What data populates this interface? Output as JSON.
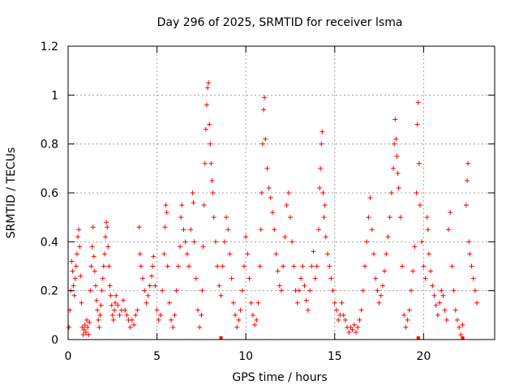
{
  "chart_data": {
    "type": "scatter",
    "title": "Day 296 of 2025, SRMTID for receiver lsma",
    "xlabel": "GPS time / hours",
    "ylabel": "SRMTID / TECUs",
    "xlim": [
      0,
      24
    ],
    "ylim": [
      0,
      1.2
    ],
    "xticks": [
      0,
      5,
      10,
      15,
      20
    ],
    "yticks": [
      0,
      0.2,
      0.4,
      0.6,
      0.8,
      1,
      1.2
    ],
    "xtick_labels": [
      "0",
      "5",
      "10",
      "15",
      "20"
    ],
    "ytick_labels": [
      "0",
      "0.2",
      "0.4",
      "0.6",
      "0.8",
      "1",
      "1.2"
    ],
    "grid": true,
    "marker": "+",
    "color": "#ff0000",
    "series": [
      {
        "name": "SRMTID",
        "points": [
          [
            0.05,
            0.05
          ],
          [
            0.1,
            0.12
          ],
          [
            0.15,
            0.2
          ],
          [
            0.2,
            0.32
          ],
          [
            0.25,
            0.28
          ],
          [
            0.3,
            0.22
          ],
          [
            0.35,
            0.18
          ],
          [
            0.4,
            0.25
          ],
          [
            0.45,
            0.3
          ],
          [
            0.5,
            0.35
          ],
          [
            0.55,
            0.42
          ],
          [
            0.6,
            0.45
          ],
          [
            0.65,
            0.38
          ],
          [
            0.7,
            0.26
          ],
          [
            0.75,
            0.15
          ],
          [
            0.8,
            0.05
          ],
          [
            0.85,
            0.02
          ],
          [
            0.9,
            0.04
          ],
          [
            0.95,
            0.06
          ],
          [
            1.0,
            0.03
          ],
          [
            1.05,
            0.08
          ],
          [
            1.1,
            0.05
          ],
          [
            1.15,
            0.02
          ],
          [
            1.2,
            0.07
          ],
          [
            1.25,
            0.2
          ],
          [
            1.3,
            0.3
          ],
          [
            1.35,
            0.38
          ],
          [
            1.4,
            0.46
          ],
          [
            1.45,
            0.34
          ],
          [
            1.5,
            0.28
          ],
          [
            1.55,
            0.22
          ],
          [
            1.6,
            0.16
          ],
          [
            1.65,
            0.12
          ],
          [
            1.7,
            0.08
          ],
          [
            1.75,
            0.05
          ],
          [
            1.8,
            0.1
          ],
          [
            1.85,
            0.14
          ],
          [
            1.9,
            0.2
          ],
          [
            1.95,
            0.25
          ],
          [
            2.0,
            0.3
          ],
          [
            2.05,
            0.35
          ],
          [
            2.1,
            0.42
          ],
          [
            2.15,
            0.48
          ],
          [
            2.2,
            0.46
          ],
          [
            2.25,
            0.38
          ],
          [
            2.3,
            0.3
          ],
          [
            2.35,
            0.22
          ],
          [
            2.4,
            0.18
          ],
          [
            2.45,
            0.14
          ],
          [
            2.5,
            0.1
          ],
          [
            2.55,
            0.08
          ],
          [
            2.6,
            0.12
          ],
          [
            2.65,
            0.15
          ],
          [
            2.7,
            0.18
          ],
          [
            2.8,
            0.14
          ],
          [
            2.9,
            0.1
          ],
          [
            3.0,
            0.12
          ],
          [
            3.1,
            0.16
          ],
          [
            3.2,
            0.12
          ],
          [
            3.3,
            0.1
          ],
          [
            3.4,
            0.08
          ],
          [
            3.5,
            0.05
          ],
          [
            3.6,
            0.08
          ],
          [
            3.7,
            0.06
          ],
          [
            3.8,
            0.1
          ],
          [
            3.9,
            0.12
          ],
          [
            4.0,
            0.46
          ],
          [
            4.05,
            0.35
          ],
          [
            4.1,
            0.3
          ],
          [
            4.2,
            0.25
          ],
          [
            4.3,
            0.2
          ],
          [
            4.4,
            0.15
          ],
          [
            4.5,
            0.18
          ],
          [
            4.6,
            0.22
          ],
          [
            4.7,
            0.26
          ],
          [
            4.75,
            0.3
          ],
          [
            4.8,
            0.34
          ],
          [
            4.9,
            0.22
          ],
          [
            5.0,
            0.12
          ],
          [
            5.1,
            0.08
          ],
          [
            5.2,
            0.1
          ],
          [
            5.3,
            0.2
          ],
          [
            5.4,
            0.35
          ],
          [
            5.45,
            0.46
          ],
          [
            5.5,
            0.55
          ],
          [
            5.55,
            0.52
          ],
          [
            5.6,
            0.3
          ],
          [
            5.7,
            0.15
          ],
          [
            5.8,
            0.08
          ],
          [
            5.9,
            0.05
          ],
          [
            6.0,
            0.1
          ],
          [
            6.1,
            0.2
          ],
          [
            6.2,
            0.3
          ],
          [
            6.3,
            0.38
          ],
          [
            6.35,
            0.5
          ],
          [
            6.4,
            0.55
          ],
          [
            6.5,
            0.45
          ],
          [
            6.6,
            0.4
          ],
          [
            6.7,
            0.35
          ],
          [
            6.8,
            0.3
          ],
          [
            6.9,
            0.45
          ],
          [
            7.0,
            0.6
          ],
          [
            7.05,
            0.56
          ],
          [
            7.1,
            0.4
          ],
          [
            7.2,
            0.25
          ],
          [
            7.3,
            0.12
          ],
          [
            7.4,
            0.05
          ],
          [
            7.5,
            0.1
          ],
          [
            7.55,
            0.2
          ],
          [
            7.6,
            0.38
          ],
          [
            7.65,
            0.55
          ],
          [
            7.7,
            0.72
          ],
          [
            7.75,
            0.86
          ],
          [
            7.8,
            0.96
          ],
          [
            7.85,
            1.03
          ],
          [
            7.9,
            1.05
          ],
          [
            7.95,
            0.88
          ],
          [
            8.0,
            0.8
          ],
          [
            8.05,
            0.72
          ],
          [
            8.1,
            0.65
          ],
          [
            8.15,
            0.6
          ],
          [
            8.2,
            0.5
          ],
          [
            8.3,
            0.4
          ],
          [
            8.4,
            0.3
          ],
          [
            8.5,
            0.22
          ],
          [
            8.6,
            0.18
          ],
          [
            8.7,
            0.3
          ],
          [
            8.8,
            0.4
          ],
          [
            8.9,
            0.5
          ],
          [
            9.0,
            0.45
          ],
          [
            9.1,
            0.35
          ],
          [
            9.2,
            0.25
          ],
          [
            9.3,
            0.15
          ],
          [
            9.4,
            0.1
          ],
          [
            9.5,
            0.05
          ],
          [
            9.6,
            0.08
          ],
          [
            9.7,
            0.12
          ],
          [
            9.8,
            0.2
          ],
          [
            9.9,
            0.3
          ],
          [
            10.0,
            0.42
          ],
          [
            10.1,
            0.35
          ],
          [
            10.2,
            0.25
          ],
          [
            10.3,
            0.15
          ],
          [
            10.4,
            0.1
          ],
          [
            10.5,
            0.06
          ],
          [
            10.6,
            0.08
          ],
          [
            10.7,
            0.15
          ],
          [
            10.8,
            0.3
          ],
          [
            10.85,
            0.45
          ],
          [
            10.9,
            0.6
          ],
          [
            10.95,
            0.8
          ],
          [
            11.0,
            0.94
          ],
          [
            11.05,
            0.99
          ],
          [
            11.1,
            0.82
          ],
          [
            11.2,
            0.7
          ],
          [
            11.3,
            0.62
          ],
          [
            11.4,
            0.58
          ],
          [
            11.5,
            0.52
          ],
          [
            11.6,
            0.45
          ],
          [
            11.7,
            0.35
          ],
          [
            11.8,
            0.28
          ],
          [
            11.9,
            0.22
          ],
          [
            12.0,
            0.2
          ],
          [
            12.1,
            0.3
          ],
          [
            12.2,
            0.42
          ],
          [
            12.3,
            0.55
          ],
          [
            12.4,
            0.6
          ],
          [
            12.5,
            0.5
          ],
          [
            12.6,
            0.4
          ],
          [
            12.7,
            0.3
          ],
          [
            12.8,
            0.2
          ],
          [
            12.9,
            0.15
          ],
          [
            13.0,
            0.2
          ],
          [
            13.1,
            0.25
          ],
          [
            13.2,
            0.3
          ],
          [
            13.3,
            0.22
          ],
          [
            13.4,
            0.16
          ],
          [
            13.5,
            0.12
          ],
          [
            13.6,
            0.2
          ],
          [
            13.7,
            0.3
          ],
          [
            13.8,
            0.36
          ],
          [
            13.9,
            0.25
          ],
          [
            14.0,
            0.3
          ],
          [
            14.1,
            0.45
          ],
          [
            14.15,
            0.62
          ],
          [
            14.2,
            0.7
          ],
          [
            14.25,
            0.8
          ],
          [
            14.3,
            0.85
          ],
          [
            14.35,
            0.6
          ],
          [
            14.4,
            0.5
          ],
          [
            14.45,
            0.55
          ],
          [
            14.5,
            0.42
          ],
          [
            14.6,
            0.35
          ],
          [
            14.7,
            0.3
          ],
          [
            14.8,
            0.25
          ],
          [
            14.9,
            0.2
          ],
          [
            15.0,
            0.15
          ],
          [
            15.1,
            0.12
          ],
          [
            15.2,
            0.08
          ],
          [
            15.3,
            0.1
          ],
          [
            15.4,
            0.15
          ],
          [
            15.5,
            0.1
          ],
          [
            15.6,
            0.08
          ],
          [
            15.7,
            0.05
          ],
          [
            15.8,
            0.03
          ],
          [
            15.9,
            0.05
          ],
          [
            16.0,
            0.04
          ],
          [
            16.1,
            0.06
          ],
          [
            16.2,
            0.03
          ],
          [
            16.3,
            0.05
          ],
          [
            16.4,
            0.08
          ],
          [
            16.5,
            0.12
          ],
          [
            16.6,
            0.2
          ],
          [
            16.7,
            0.3
          ],
          [
            16.8,
            0.4
          ],
          [
            16.9,
            0.5
          ],
          [
            17.0,
            0.58
          ],
          [
            17.1,
            0.45
          ],
          [
            17.2,
            0.35
          ],
          [
            17.3,
            0.25
          ],
          [
            17.4,
            0.2
          ],
          [
            17.5,
            0.15
          ],
          [
            17.6,
            0.18
          ],
          [
            17.7,
            0.22
          ],
          [
            17.8,
            0.28
          ],
          [
            17.9,
            0.35
          ],
          [
            18.0,
            0.42
          ],
          [
            18.1,
            0.5
          ],
          [
            18.2,
            0.6
          ],
          [
            18.3,
            0.7
          ],
          [
            18.35,
            0.8
          ],
          [
            18.4,
            0.9
          ],
          [
            18.45,
            0.82
          ],
          [
            18.5,
            0.75
          ],
          [
            18.55,
            0.68
          ],
          [
            18.6,
            0.62
          ],
          [
            18.7,
            0.5
          ],
          [
            18.8,
            0.3
          ],
          [
            18.9,
            0.1
          ],
          [
            19.0,
            0.05
          ],
          [
            19.1,
            0.08
          ],
          [
            19.2,
            0.12
          ],
          [
            19.3,
            0.2
          ],
          [
            19.4,
            0.28
          ],
          [
            19.5,
            0.38
          ],
          [
            19.6,
            0.6
          ],
          [
            19.65,
            0.88
          ],
          [
            19.7,
            0.97
          ],
          [
            19.75,
            0.72
          ],
          [
            19.8,
            0.55
          ],
          [
            19.9,
            0.4
          ],
          [
            20.0,
            0.3
          ],
          [
            20.1,
            0.25
          ],
          [
            20.2,
            0.5
          ],
          [
            20.25,
            0.45
          ],
          [
            20.3,
            0.35
          ],
          [
            20.4,
            0.28
          ],
          [
            20.5,
            0.22
          ],
          [
            20.6,
            0.18
          ],
          [
            20.7,
            0.14
          ],
          [
            20.8,
            0.1
          ],
          [
            20.9,
            0.15
          ],
          [
            21.0,
            0.2
          ],
          [
            21.1,
            0.18
          ],
          [
            21.2,
            0.12
          ],
          [
            21.3,
            0.08
          ],
          [
            21.4,
            0.45
          ],
          [
            21.5,
            0.52
          ],
          [
            21.6,
            0.3
          ],
          [
            21.7,
            0.2
          ],
          [
            21.8,
            0.12
          ],
          [
            21.9,
            0.08
          ],
          [
            22.0,
            0.05
          ],
          [
            22.1,
            0.02
          ],
          [
            22.2,
            0.06
          ],
          [
            22.4,
            0.55
          ],
          [
            22.45,
            0.65
          ],
          [
            22.5,
            0.72
          ],
          [
            22.55,
            0.4
          ],
          [
            22.6,
            0.35
          ],
          [
            22.7,
            0.3
          ],
          [
            22.8,
            0.25
          ],
          [
            22.9,
            0.2
          ],
          [
            23.0,
            0.15
          ]
        ],
        "bottom_markers": [
          8.6,
          19.7,
          22.2
        ]
      }
    ]
  }
}
